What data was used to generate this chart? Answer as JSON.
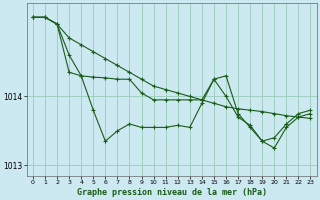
{
  "title": "Graphe pression niveau de la mer (hPa)",
  "background_color": "#cce8f0",
  "grid_color": "#99ccbb",
  "line_color": "#1a5c1a",
  "marker_color": "#1a5c1a",
  "xlim": [
    -0.5,
    23.5
  ],
  "ylim": [
    1012.85,
    1015.35
  ],
  "yticks": [
    1013,
    1014
  ],
  "xticks": [
    0,
    1,
    2,
    3,
    4,
    5,
    6,
    7,
    8,
    9,
    10,
    11,
    12,
    13,
    14,
    15,
    16,
    17,
    18,
    19,
    20,
    21,
    22,
    23
  ],
  "series": [
    [
      1015.15,
      1015.15,
      1015.05,
      1014.85,
      1014.75,
      1014.65,
      1014.55,
      1014.45,
      1014.35,
      1014.25,
      1014.15,
      1014.1,
      1014.05,
      1014.0,
      1013.95,
      1013.9,
      1013.85,
      1013.82,
      1013.8,
      1013.78,
      1013.75,
      1013.72,
      1013.7,
      1013.68
    ],
    [
      1015.15,
      1015.15,
      1015.05,
      1014.35,
      1014.3,
      1013.8,
      1013.35,
      1013.5,
      1013.6,
      1013.55,
      1013.55,
      1013.55,
      1013.58,
      1013.55,
      1013.9,
      1014.25,
      1014.0,
      1013.7,
      1013.58,
      1013.35,
      1013.25,
      1013.55,
      1013.7,
      1013.75
    ],
    [
      1015.15,
      1015.15,
      1015.05,
      1014.6,
      1014.3,
      1014.28,
      1014.27,
      1014.25,
      1014.25,
      1014.05,
      1013.95,
      1013.95,
      1013.95,
      1013.95,
      1013.95,
      1014.25,
      1014.3,
      1013.75,
      1013.55,
      1013.35,
      1013.4,
      1013.6,
      1013.75,
      1013.8
    ]
  ]
}
